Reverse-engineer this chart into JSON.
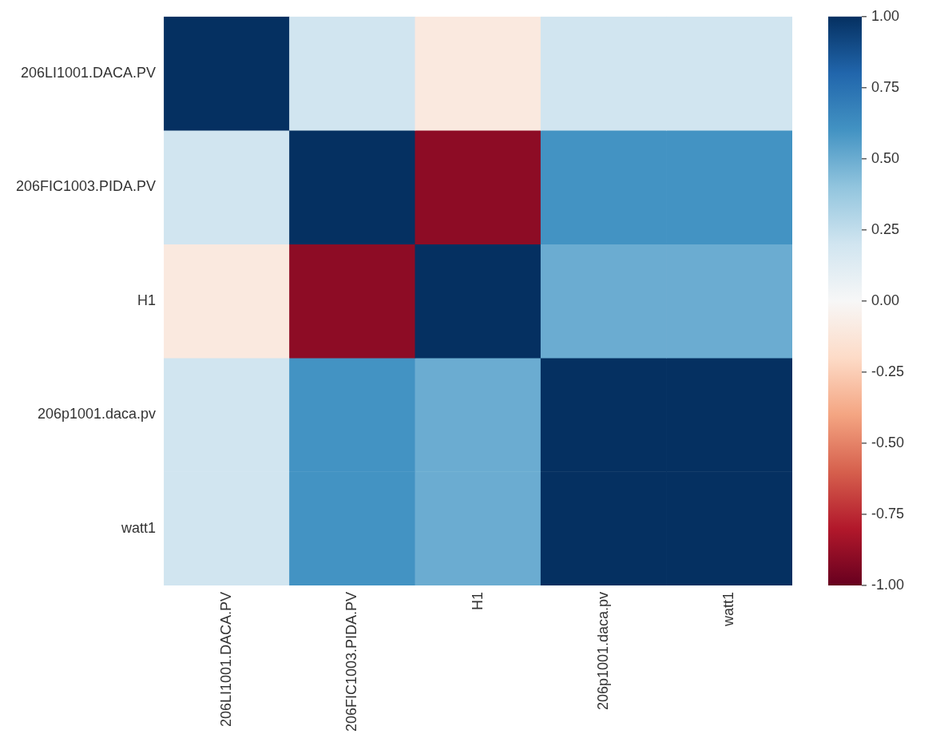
{
  "chart_data": {
    "type": "heatmap",
    "categories": [
      "206LI1001.DACA.PV",
      "206FIC1003.PIDA.PV",
      "H1",
      "206p1001.daca.pv",
      "watt1"
    ],
    "y_categories": [
      "206LI1001.DACA.PV",
      "206FIC1003.PIDA.PV",
      "H1",
      "206p1001.daca.pv",
      "watt1"
    ],
    "cells": [
      [
        1,
        0.2,
        -0.1,
        0.2,
        0.2
      ],
      [
        0.2,
        1,
        -0.9,
        0.6,
        0.6
      ],
      [
        -0.1,
        -0.9,
        1,
        0.5,
        0.5
      ],
      [
        0.2,
        0.6,
        0.5,
        1,
        1
      ],
      [
        0.2,
        0.6,
        0.5,
        1,
        1
      ]
    ],
    "clim": [
      -1,
      1
    ],
    "cticks": [
      {
        "value": -1,
        "label": "-1.00"
      },
      {
        "value": -0.75,
        "label": "-0.75"
      },
      {
        "value": -0.5,
        "label": "-0.50"
      },
      {
        "value": -0.25,
        "label": "-0.25"
      },
      {
        "value": 0,
        "label": "0.00"
      },
      {
        "value": 0.25,
        "label": "0.25"
      },
      {
        "value": 0.5,
        "label": "0.50"
      },
      {
        "value": 0.75,
        "label": "0.75"
      },
      {
        "value": 1,
        "label": "1.00"
      }
    ],
    "grid": false,
    "legend": false
  }
}
